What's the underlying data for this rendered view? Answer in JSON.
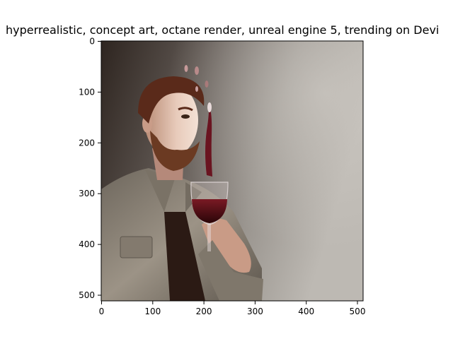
{
  "figure": {
    "title": "hyperrealistic, concept art, octane render, unreal engine 5, trending on Devi",
    "x_ticks": [
      "0",
      "100",
      "200",
      "300",
      "400",
      "500"
    ],
    "y_ticks": [
      "0",
      "100",
      "200",
      "300",
      "400",
      "500"
    ]
  },
  "image": {
    "subject_icon": "man-with-wine-glass-image",
    "colors": {
      "background_dark": "#3a302a",
      "background_light": "#b8b4ae",
      "hair": "#5a2a1a",
      "beard": "#6b3a22",
      "skin": "#d9b8a6",
      "jacket": "#8d8578",
      "shirt": "#2b1a14",
      "wine": "#5a0e16"
    }
  }
}
